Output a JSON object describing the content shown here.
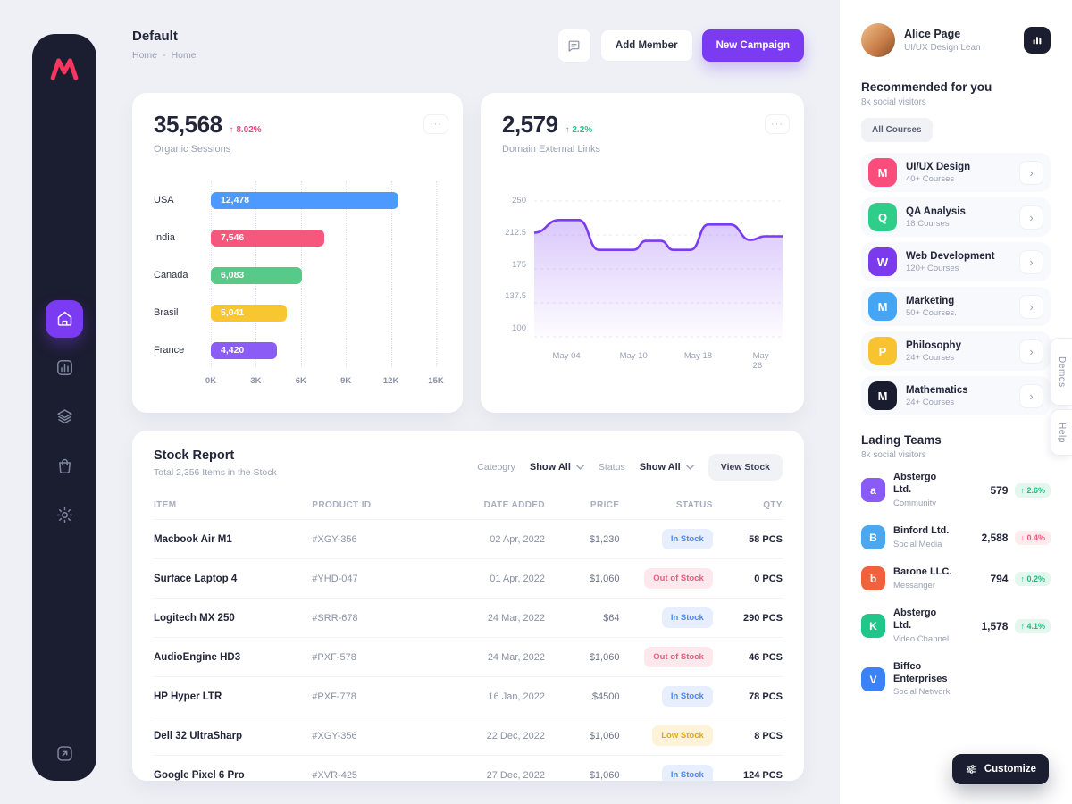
{
  "ui": {
    "more_dots": "···"
  },
  "colors": {
    "accent_purple": "#7b3bf2",
    "dark_navy": "#1b1d30",
    "kpi_red": "#f5437c",
    "kpi_green": "#22c68a"
  },
  "header": {
    "title": "Default",
    "breadcrumb": [
      "Home",
      "Home"
    ],
    "separator": "-",
    "buttons": {
      "add_member": "Add Member",
      "new_campaign": "New Campaign"
    }
  },
  "chart_data": [
    {
      "type": "bar",
      "orientation": "horizontal",
      "kpi": "35,568",
      "kpi_change": "8.02%",
      "kpi_change_dir": "up",
      "kpi_change_color": "#f5437c",
      "title": "Organic Sessions",
      "categories": [
        "USA",
        "India",
        "Canada",
        "Brasil",
        "France"
      ],
      "values": [
        12478,
        7546,
        6083,
        5041,
        4420
      ],
      "value_labels": [
        "12,478",
        "7,546",
        "6,083",
        "5,041",
        "4,420"
      ],
      "colors": [
        "#4c9aff",
        "#f5587c",
        "#57c989",
        "#f8c630",
        "#8c5cf6"
      ],
      "xlim": [
        0,
        15000
      ],
      "xticks": [
        "0K",
        "3K",
        "6K",
        "9K",
        "12K",
        "15K"
      ],
      "grid": "dotted-vertical"
    },
    {
      "type": "area",
      "kpi": "2,579",
      "kpi_change": "2.2%",
      "kpi_change_dir": "up",
      "kpi_change_color": "#22c68a",
      "title": "Domain External Links",
      "color": "#7b3bf2",
      "ylim": [
        100,
        250
      ],
      "yticks": [
        "250",
        "212.5",
        "175",
        "137.5",
        "100"
      ],
      "xticks": [
        "May 04",
        "May 10",
        "May 18",
        "May 26"
      ],
      "x": [
        0,
        0.1,
        0.18,
        0.26,
        0.33,
        0.4,
        0.45,
        0.51,
        0.56,
        0.63,
        0.7,
        0.79,
        0.87,
        0.93,
        1
      ],
      "y": [
        215,
        229,
        229,
        196,
        196,
        196,
        206,
        206,
        196,
        196,
        224,
        224,
        207,
        211,
        211
      ],
      "grid": "dashed-horizontal",
      "legend": "none"
    }
  ],
  "stock": {
    "title": "Stock Report",
    "subtitle": "Total 2,356 Items in the Stock",
    "filters": {
      "category_label": "Cateogry",
      "category_value": "Show All",
      "status_label": "Status",
      "status_value": "Show All",
      "view_stock": "View Stock"
    },
    "columns": [
      "ITEM",
      "PRODUCT ID",
      "DATE ADDED",
      "PRICE",
      "STATUS",
      "QTY"
    ],
    "rows": [
      {
        "item": "Macbook Air M1",
        "id": "#XGY-356",
        "date": "02 Apr, 2022",
        "price": "$1,230",
        "status": "In Stock",
        "status_type": "in",
        "qty": "58 PCS"
      },
      {
        "item": "Surface Laptop 4",
        "id": "#YHD-047",
        "date": "01 Apr, 2022",
        "price": "$1,060",
        "status": "Out of Stock",
        "status_type": "out",
        "qty": "0 PCS"
      },
      {
        "item": "Logitech MX 250",
        "id": "#SRR-678",
        "date": "24 Mar, 2022",
        "price": "$64",
        "status": "In Stock",
        "status_type": "in",
        "qty": "290 PCS"
      },
      {
        "item": "AudioEngine HD3",
        "id": "#PXF-578",
        "date": "24 Mar, 2022",
        "price": "$1,060",
        "status": "Out of Stock",
        "status_type": "out",
        "qty": "46 PCS"
      },
      {
        "item": "HP Hyper LTR",
        "id": "#PXF-778",
        "date": "16 Jan, 2022",
        "price": "$4500",
        "status": "In Stock",
        "status_type": "in",
        "qty": "78 PCS"
      },
      {
        "item": "Dell 32 UltraSharp",
        "id": "#XGY-356",
        "date": "22 Dec, 2022",
        "price": "$1,060",
        "status": "Low Stock",
        "status_type": "low",
        "qty": "8 PCS"
      },
      {
        "item": "Google Pixel 6 Pro",
        "id": "#XVR-425",
        "date": "27 Dec, 2022",
        "price": "$1,060",
        "status": "In Stock",
        "status_type": "in",
        "qty": "124 PCS"
      }
    ]
  },
  "profile": {
    "name": "Alice Page",
    "role": "UI/UX Design Lean"
  },
  "recommended": {
    "title": "Recommended for you",
    "subtitle": "8k social visitors",
    "chip": "All Courses",
    "courses": [
      {
        "letter": "M",
        "color": "#fb4d7b",
        "title": "UI/UX Design",
        "subtitle": "40+ Courses"
      },
      {
        "letter": "Q",
        "color": "#2ecd8a",
        "title": "QA Analysis",
        "subtitle": "18 Courses"
      },
      {
        "letter": "W",
        "color": "#7c3aed",
        "title": "Web Development",
        "subtitle": "120+ Courses"
      },
      {
        "letter": "M",
        "color": "#45a5f5",
        "title": "Marketing",
        "subtitle": "50+ Courses."
      },
      {
        "letter": "P",
        "color": "#f7c331",
        "title": "Philosophy",
        "subtitle": "24+ Courses"
      },
      {
        "letter": "M",
        "color": "#191b2e",
        "title": "Mathematics",
        "subtitle": "24+ Courses"
      }
    ]
  },
  "teams": {
    "title": "Lading Teams",
    "subtitle": "8k social visitors",
    "items": [
      {
        "letter": "a",
        "color": "#8a5cf5",
        "name": "Abstergo Ltd.",
        "subtitle": "Community",
        "value": "579",
        "change": "2.6%",
        "dir": "up"
      },
      {
        "letter": "B",
        "color": "#4aa8f0",
        "name": "Binford Ltd.",
        "subtitle": "Social Media",
        "value": "2,588",
        "change": "0.4%",
        "dir": "down"
      },
      {
        "letter": "b",
        "color": "#f0623c",
        "name": "Barone LLC.",
        "subtitle": "Messanger",
        "value": "794",
        "change": "0.2%",
        "dir": "up"
      },
      {
        "letter": "K",
        "color": "#22c68a",
        "name": "Abstergo Ltd.",
        "subtitle": "Video Channel",
        "value": "1,578",
        "change": "4.1%",
        "dir": "up"
      },
      {
        "letter": "V",
        "color": "#3b82f6",
        "name": "Biffco Enterprises",
        "subtitle": "Social Network",
        "value": "",
        "change": "",
        "dir": ""
      }
    ]
  },
  "customize_label": "Customize",
  "edge_tabs": [
    "Demos",
    "Help"
  ],
  "icons": [
    "logo-m",
    "home-icon",
    "bar-chart-icon",
    "layers-icon",
    "bag-icon",
    "gear-icon",
    "share-icon",
    "chat-icon",
    "mini-bars-icon",
    "chevron-down-icon",
    "chevron-right-icon",
    "sliders-icon",
    "trend-up-icon",
    "trend-down-icon"
  ]
}
